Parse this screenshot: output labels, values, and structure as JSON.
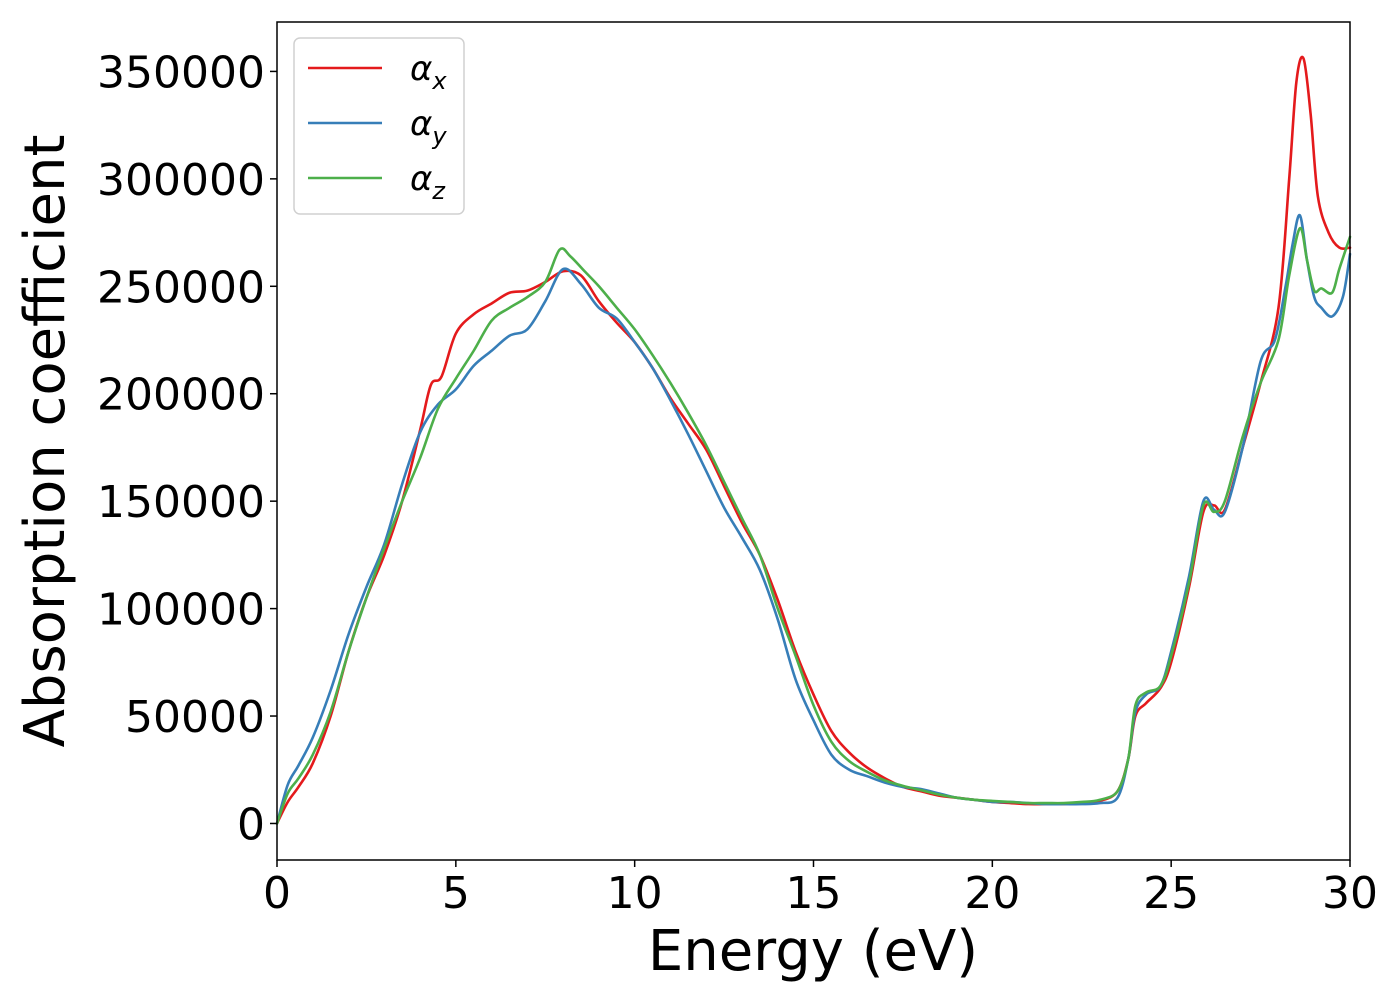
{
  "chart_data": {
    "type": "line",
    "xlabel": "Energy (eV)",
    "ylabel": "Absorption coefficient",
    "xlim": [
      0,
      30
    ],
    "ylim": [
      -17000,
      373000
    ],
    "xticks": [
      0,
      5,
      10,
      15,
      20,
      25,
      30
    ],
    "xtick_labels": [
      "0",
      "5",
      "10",
      "15",
      "20",
      "25",
      "30"
    ],
    "yticks": [
      0,
      50000,
      100000,
      150000,
      200000,
      250000,
      300000,
      350000
    ],
    "ytick_labels": [
      "0",
      "50000",
      "100000",
      "150000",
      "200000",
      "250000",
      "300000",
      "350000"
    ],
    "grid": false,
    "legend_position": "top-left",
    "series": [
      {
        "name": "α",
        "subscript": "x",
        "color": "#e41a1c",
        "x": [
          0,
          0.3,
          0.6,
          1.0,
          1.5,
          2.0,
          2.5,
          3.0,
          3.5,
          4.0,
          4.3,
          4.6,
          5.0,
          5.5,
          6.0,
          6.5,
          7.0,
          7.5,
          8.0,
          8.5,
          9.0,
          9.5,
          10.0,
          10.5,
          11.0,
          11.5,
          12.0,
          12.5,
          13.0,
          13.5,
          14.0,
          14.5,
          15.0,
          15.5,
          16.0,
          16.5,
          17.0,
          17.5,
          18.0,
          18.5,
          19.0,
          19.5,
          20.0,
          20.5,
          21.0,
          21.5,
          22.0,
          22.5,
          23.0,
          23.5,
          23.8,
          24.0,
          24.3,
          24.7,
          25.0,
          25.5,
          25.9,
          26.2,
          26.5,
          27.0,
          27.5,
          28.0,
          28.3,
          28.5,
          28.7,
          28.9,
          29.1,
          29.4,
          29.7,
          30.0
        ],
        "y": [
          0,
          10000,
          17000,
          28000,
          50000,
          80000,
          105000,
          125000,
          150000,
          183000,
          204000,
          208000,
          228000,
          237000,
          242000,
          247000,
          248000,
          252000,
          257000,
          255000,
          243000,
          233000,
          224000,
          212000,
          198000,
          186000,
          174000,
          157000,
          140000,
          125000,
          104000,
          80000,
          60000,
          43000,
          33000,
          26000,
          21000,
          17000,
          15000,
          13000,
          12000,
          11000,
          10000,
          9500,
          9000,
          9000,
          9000,
          9500,
          10500,
          15000,
          30000,
          50000,
          56000,
          63000,
          75000,
          110000,
          145000,
          148000,
          146000,
          175000,
          205000,
          240000,
          300000,
          345000,
          356000,
          330000,
          292000,
          275000,
          268000,
          268000
        ]
      },
      {
        "name": "α",
        "subscript": "y",
        "color": "#377eb8",
        "x": [
          0,
          0.3,
          0.6,
          1.0,
          1.5,
          2.0,
          2.5,
          3.0,
          3.5,
          4.0,
          4.5,
          5.0,
          5.5,
          6.0,
          6.5,
          7.0,
          7.5,
          8.0,
          8.5,
          9.0,
          9.5,
          10.0,
          10.5,
          11.0,
          11.5,
          12.0,
          12.5,
          13.0,
          13.5,
          14.0,
          14.5,
          15.0,
          15.5,
          16.0,
          16.5,
          17.0,
          17.5,
          18.0,
          18.5,
          19.0,
          19.5,
          20.0,
          20.5,
          21.0,
          21.5,
          22.0,
          22.5,
          23.0,
          23.5,
          23.8,
          24.0,
          24.3,
          24.7,
          25.0,
          25.5,
          25.9,
          26.2,
          26.5,
          27.0,
          27.5,
          27.9,
          28.2,
          28.4,
          28.6,
          28.8,
          29.0,
          29.2,
          29.5,
          29.8,
          30.0
        ],
        "y": [
          0,
          18000,
          27000,
          40000,
          62000,
          88000,
          110000,
          130000,
          158000,
          182000,
          195000,
          202000,
          213000,
          220000,
          227000,
          230000,
          243000,
          258000,
          251000,
          240000,
          235000,
          224000,
          212000,
          197000,
          181000,
          164000,
          147000,
          133000,
          118000,
          95000,
          67000,
          48000,
          32000,
          25000,
          22000,
          19000,
          17000,
          16000,
          14000,
          12000,
          11000,
          10000,
          10000,
          9500,
          9000,
          9000,
          9000,
          9500,
          12000,
          30000,
          52000,
          60000,
          64000,
          80000,
          115000,
          150000,
          146000,
          145000,
          175000,
          215000,
          225000,
          250000,
          270000,
          283000,
          262000,
          245000,
          240000,
          236000,
          245000,
          265000
        ]
      },
      {
        "name": "α",
        "subscript": "z",
        "color": "#4daf4a",
        "x": [
          0,
          0.3,
          0.6,
          1.0,
          1.5,
          2.0,
          2.5,
          3.0,
          3.5,
          4.0,
          4.5,
          5.0,
          5.5,
          6.0,
          6.5,
          7.0,
          7.5,
          7.9,
          8.2,
          8.6,
          9.0,
          9.5,
          10.0,
          10.5,
          11.0,
          11.5,
          12.0,
          12.5,
          13.0,
          13.5,
          14.0,
          14.5,
          15.0,
          15.5,
          16.0,
          16.5,
          17.0,
          17.5,
          18.0,
          18.5,
          19.0,
          19.5,
          20.0,
          20.5,
          21.0,
          21.5,
          22.0,
          22.5,
          23.0,
          23.5,
          23.8,
          24.0,
          24.3,
          24.7,
          25.0,
          25.5,
          25.9,
          26.2,
          26.5,
          27.0,
          27.5,
          28.0,
          28.3,
          28.6,
          28.8,
          29.0,
          29.2,
          29.5,
          29.7,
          30.0
        ],
        "y": [
          0,
          14000,
          21000,
          32000,
          52000,
          80000,
          105000,
          128000,
          150000,
          170000,
          193000,
          207000,
          220000,
          234000,
          240000,
          245000,
          252000,
          267000,
          264000,
          257000,
          250000,
          240000,
          230000,
          218000,
          205000,
          191000,
          176000,
          159000,
          142000,
          125000,
          100000,
          78000,
          55000,
          38000,
          29000,
          24000,
          20000,
          17500,
          15500,
          13500,
          12000,
          11000,
          10500,
          10000,
          9500,
          9500,
          9500,
          10000,
          11000,
          15000,
          30000,
          55000,
          61000,
          64000,
          78000,
          112000,
          148000,
          145000,
          150000,
          180000,
          205000,
          225000,
          255000,
          277000,
          262000,
          248000,
          249000,
          247000,
          258000,
          273000
        ]
      }
    ]
  }
}
